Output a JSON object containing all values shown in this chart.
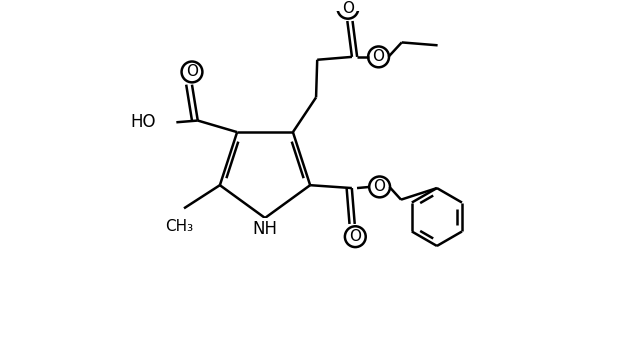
{
  "background_color": "#ffffff",
  "line_color": "#000000",
  "line_width": 1.8,
  "font_size": 12,
  "figsize": [
    6.4,
    3.6
  ],
  "dpi": 100,
  "xlim": [
    0,
    10
  ],
  "ylim": [
    0,
    6
  ]
}
